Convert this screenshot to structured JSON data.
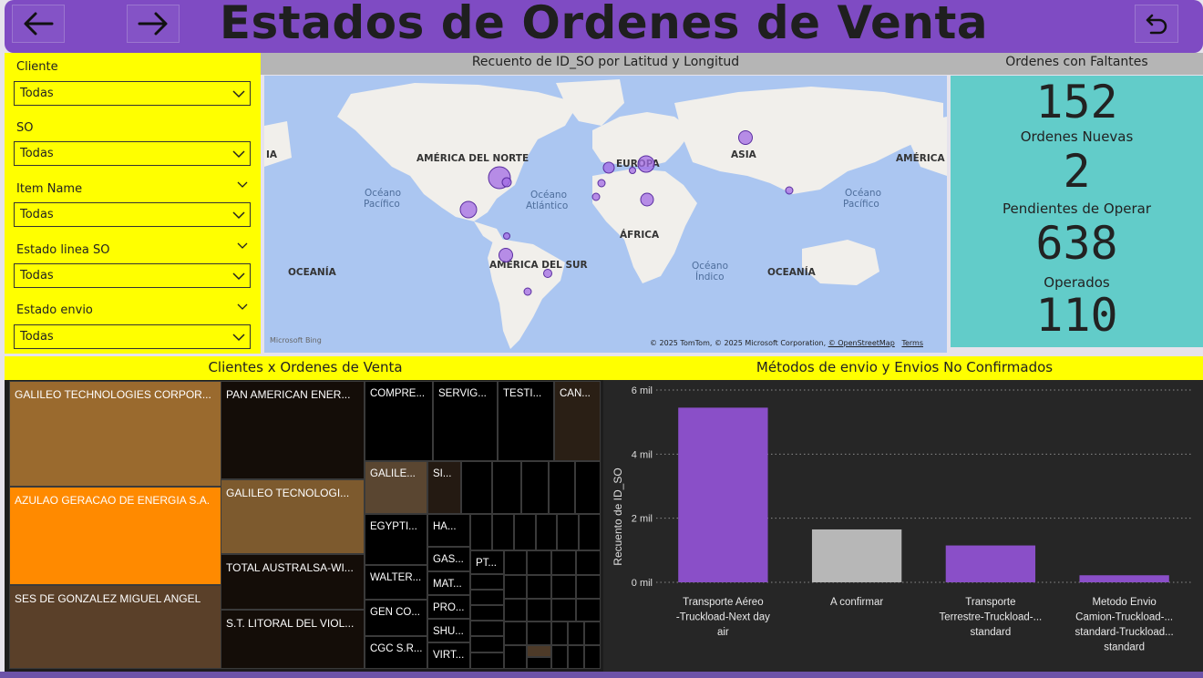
{
  "header": {
    "title": "Estados de Ordenes de Venta",
    "back_icon": "arrow-left-icon",
    "forward_icon": "arrow-right-icon",
    "reset_icon": "undo-icon",
    "color": "#7f4bc3"
  },
  "filters": [
    {
      "label": "Cliente",
      "value": "Todas"
    },
    {
      "label": "SO",
      "value": "Todas"
    },
    {
      "label": "Item Name",
      "value": "Todas"
    },
    {
      "label": "Estado linea SO",
      "value": "Todas"
    },
    {
      "label": "Estado envio",
      "value": "Todas"
    }
  ],
  "map": {
    "title": "Recuento de ID_SO por Latitud y Longitud",
    "labels": {
      "north_america": "AMÉRICA DEL NORTE",
      "europe": "EUROPA",
      "asia": "ASIA",
      "america_right": "AMÉRICA",
      "asia_left": "IA",
      "africa": "ÁFRICA",
      "south_america": "AMÉRICA DEL SUR",
      "oceania_left": "OCEANÍA",
      "oceania_right": "OCEANÍA",
      "pacific_left_1": "Océano",
      "pacific_left_2": "Pacífico",
      "atlantic_1": "Océano",
      "atlantic_2": "Atlántico",
      "indian_1": "Océano",
      "indian_2": "Índico",
      "pacific_right_1": "Océano",
      "pacific_right_2": "Pacífico"
    },
    "attribution": "© 2025 TomTom, © 2025 Microsoft Corporation,",
    "attribution_osm": "© OpenStreetMap",
    "attribution_terms": "Terms",
    "logo": "Microsoft Bing"
  },
  "kpis": {
    "title": "Ordenes con Faltantes",
    "faltantes_value": "152",
    "nuevas_label": "Ordenes Nuevas",
    "nuevas_value": "2",
    "pendientes_label": "Pendientes de Operar",
    "pendientes_value": "638",
    "operados_label": "Operados",
    "operados_value": "110",
    "panel_color": "#62ccc9"
  },
  "treemap": {
    "title": "Clientes x Ordenes de Venta",
    "tiles": [
      "GALILEO TECHNOLOGIES CORPOR...",
      "AZULAO GERACAO DE ENERGIA S.A.",
      "SES DE GONZALEZ MIGUEL ANGEL",
      "PAN AMERICAN ENER...",
      "GALILEO TECNOLOGI...",
      "TOTAL AUSTRALSA-WI...",
      "S.T. LITORAL DEL VIOL...",
      "COMPRE...",
      "SERVIG...",
      "TESTI...",
      "CAN...",
      "GALILE...",
      "SI...",
      "EGYPTI...",
      "HA...",
      "GAS...",
      "PT...",
      "WALTER...",
      "MAT...",
      "PRO...",
      "GEN CO...",
      "SHU...",
      "CGC S.R...",
      "VIRT..."
    ]
  },
  "chart_data": {
    "type": "bar",
    "title": "Métodos de envio y Envios No Confirmados",
    "ylabel": "Recuento de ID_SO",
    "xlabel": "",
    "categories": [
      [
        "Transporte Aéreo",
        "-Truckload-Next day",
        "air"
      ],
      [
        "A confirmar"
      ],
      [
        "Transporte",
        "Terrestre-Truckload-...",
        "standard"
      ],
      [
        "Metodo Envio",
        "Camion-Truckload-...",
        "standard-Truckload...",
        "standard"
      ]
    ],
    "values": [
      5450,
      1650,
      1150,
      220
    ],
    "colors": [
      "#8a4fc8",
      "#b7b7b7",
      "#8a4fc8",
      "#8a4fc8"
    ],
    "ylim": [
      0,
      6000
    ],
    "yticks": [
      0,
      2000,
      4000,
      6000
    ],
    "ytick_labels": [
      "0 mil",
      "2 mil",
      "4 mil",
      "6 mil"
    ],
    "grid": true
  }
}
